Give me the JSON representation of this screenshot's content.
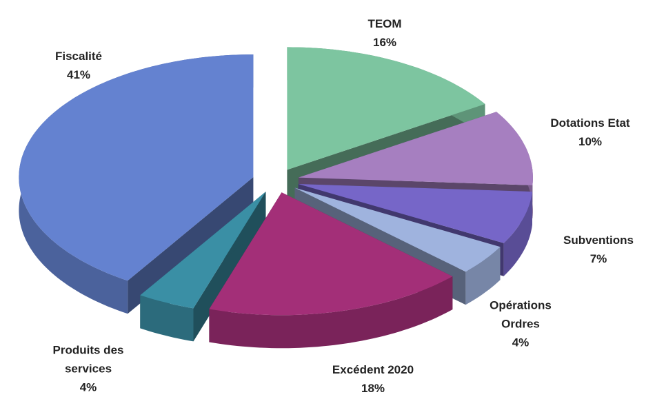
{
  "chart_data": {
    "type": "pie",
    "categories": [
      "TEOM",
      "Dotations Etat",
      "Subventions",
      "Opérations Ordres",
      "Excédent 2020",
      "Produits des services",
      "Fiscalité"
    ],
    "values": [
      16,
      10,
      7,
      4,
      18,
      4,
      41
    ],
    "value_labels": [
      "16%",
      "10%",
      "7%",
      "4%",
      "18%",
      "4%",
      "41%"
    ],
    "colors": [
      "#7dc5a0",
      "#a67fc0",
      "#7666c8",
      "#9fb3de",
      "#a32f78",
      "#3a8fa5",
      "#6482d0"
    ]
  }
}
